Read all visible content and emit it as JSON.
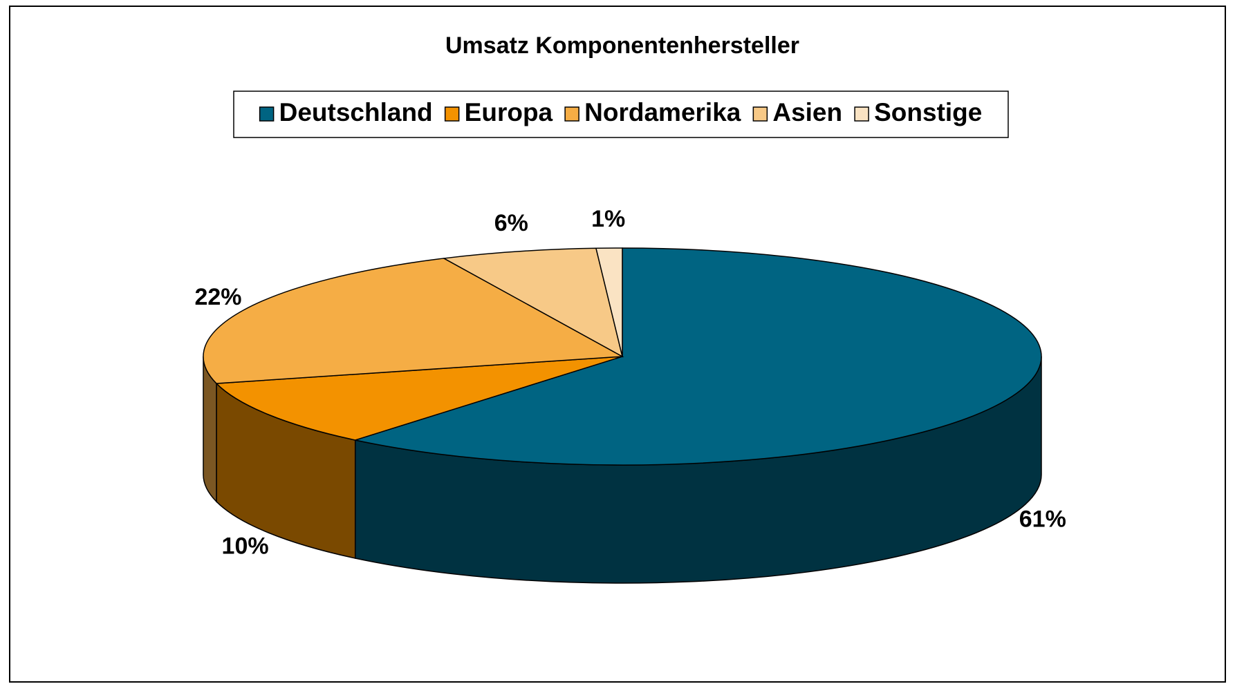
{
  "chart_data": {
    "type": "pie3d",
    "title": "Umsatz Komponentenhersteller",
    "categories": [
      "Deutschland",
      "Europa",
      "Nordamerika",
      "Asien",
      "Sonstige"
    ],
    "values": [
      61,
      10,
      22,
      6,
      1
    ],
    "value_labels": [
      "61%",
      "10%",
      "22%",
      "6%",
      "1%"
    ],
    "colors": [
      "#006482",
      "#f39200",
      "#f5ad45",
      "#f7c987",
      "#fae3c3"
    ],
    "legend": "top"
  }
}
